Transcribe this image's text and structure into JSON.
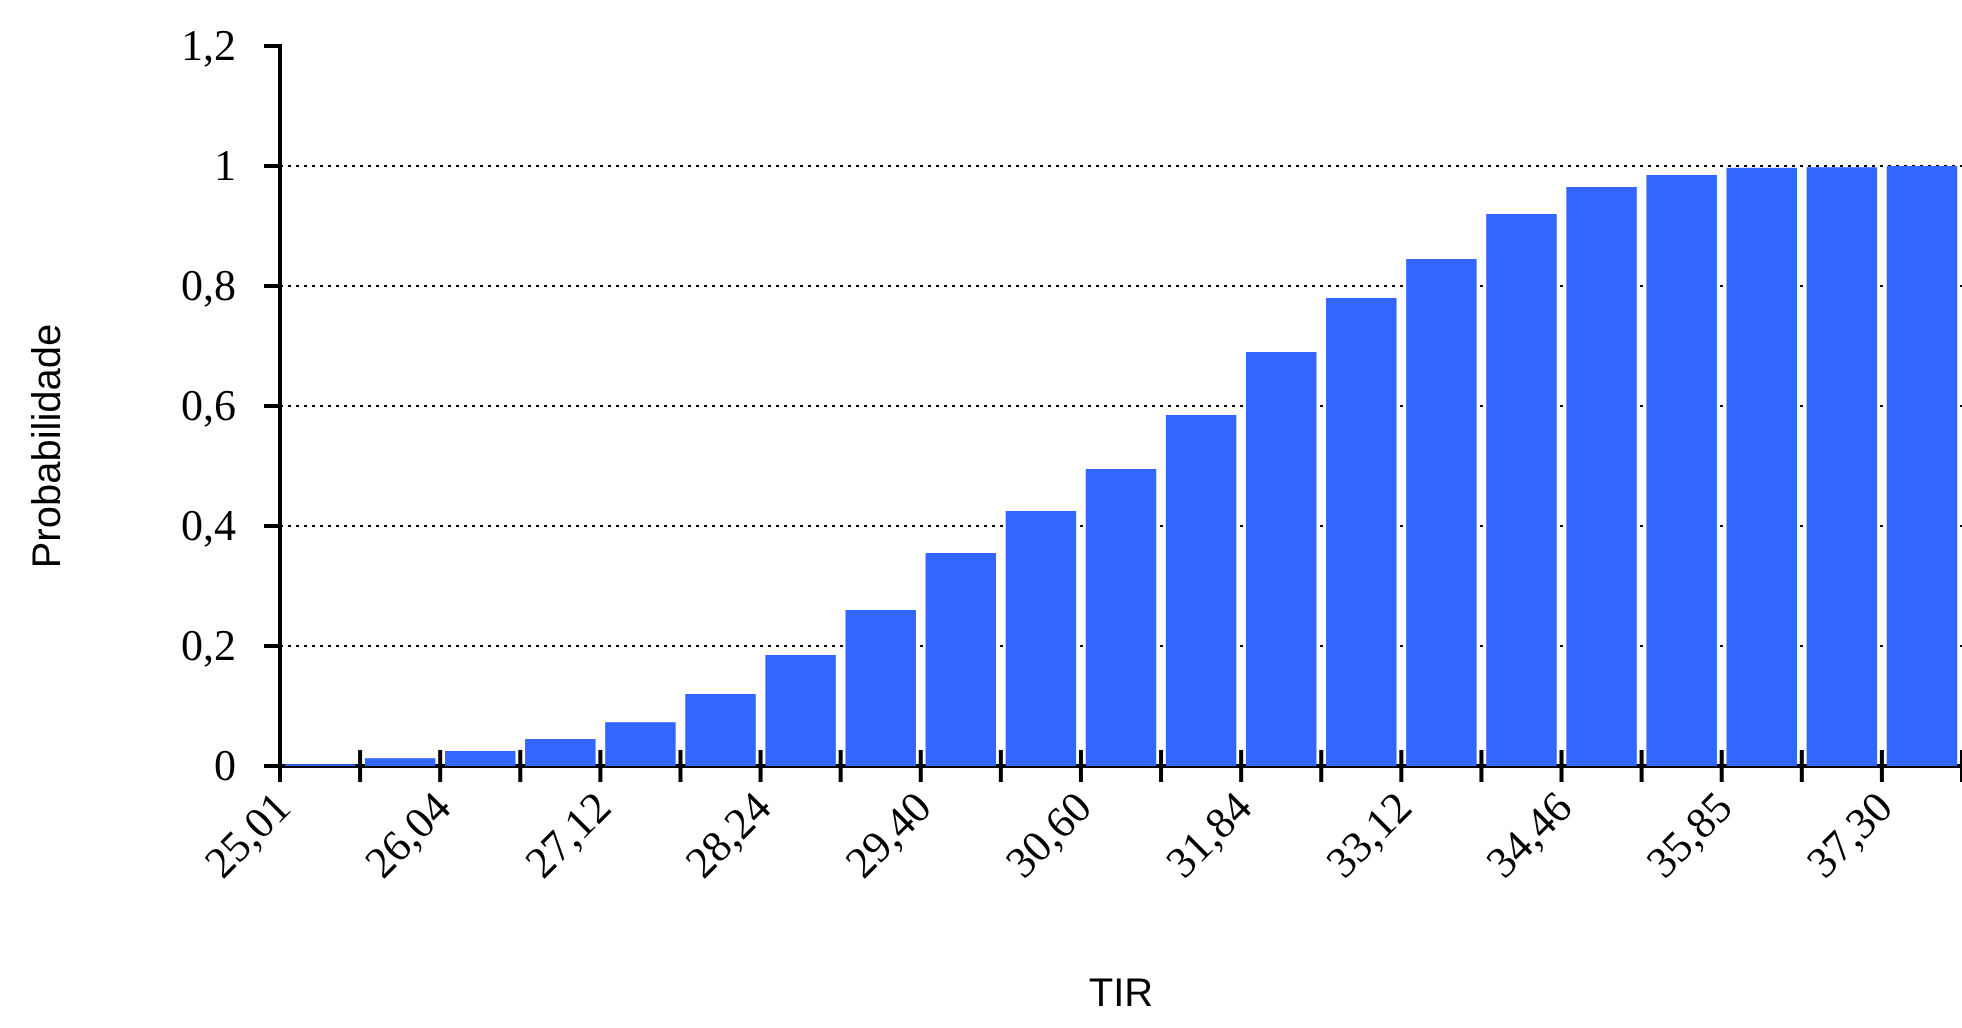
{
  "chart_data": {
    "type": "bar",
    "xlabel": "TIR",
    "ylabel": "Probabilidade",
    "categories": [
      "25,01",
      null,
      "26,04",
      null,
      "27,12",
      null,
      "28,24",
      null,
      "29,40",
      null,
      "30,60",
      null,
      "31,84",
      null,
      "33,12",
      null,
      "34,46",
      null,
      "35,85",
      null,
      "37,30"
    ],
    "values": [
      0.003,
      0.013,
      0.025,
      0.045,
      0.073,
      0.12,
      0.185,
      0.26,
      0.355,
      0.425,
      0.495,
      0.585,
      0.69,
      0.78,
      0.845,
      0.92,
      0.965,
      0.985,
      0.997,
      0.998,
      1.0
    ],
    "color": "#3366ff",
    "ylim": [
      0,
      1.2
    ],
    "yticks": [
      0,
      {
        "value": 0.2,
        "label": "0,2"
      },
      {
        "value": 0.4,
        "label": "0,4"
      },
      {
        "value": 0.6,
        "label": "0,6"
      },
      {
        "value": 0.8,
        "label": "0,8"
      },
      1,
      {
        "value": 1.2,
        "label": "1,2"
      }
    ],
    "grid": "y"
  }
}
